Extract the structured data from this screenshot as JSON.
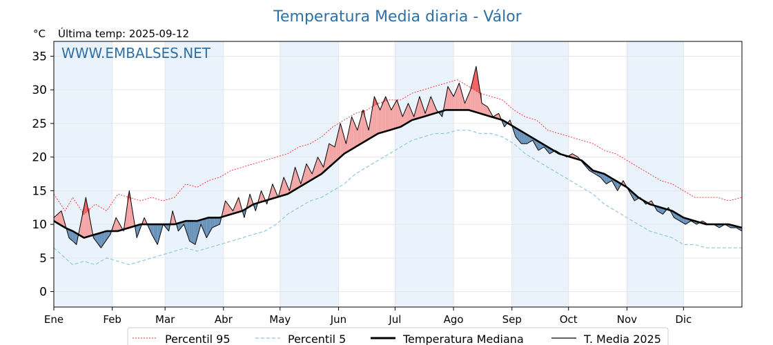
{
  "chart_data": {
    "type": "line",
    "title": "Temperatura Media diaria - Válor",
    "unit_label": "°C",
    "last_temp_label": "Última temp: 2025-09-12",
    "watermark": "WWW.EMBALSES.NET",
    "ylim": [
      -2.3,
      37.2
    ],
    "yticks": [
      0,
      5,
      10,
      15,
      20,
      25,
      30,
      35
    ],
    "xlim": [
      0,
      365
    ],
    "month_labels": [
      "Ene",
      "Feb",
      "Mar",
      "Abr",
      "May",
      "Jun",
      "Jul",
      "Ago",
      "Sep",
      "Oct",
      "Nov",
      "Dic"
    ],
    "month_starts": [
      0,
      31,
      59,
      90,
      120,
      151,
      181,
      212,
      243,
      273,
      304,
      334
    ],
    "grid": true,
    "legend_position": "bottom",
    "colors": {
      "p95": "#e8282a",
      "p5": "#8ec9dc",
      "median": "#000000",
      "year": "#000000",
      "above_fill": "#f4a5a5",
      "above_fill_strong": "#f06161",
      "below_fill": "#6a93bb",
      "month_band": "#eaf3fb",
      "title": "#2f6fa6"
    },
    "series": [
      {
        "name": "Percentil 95",
        "style": "dotted",
        "points": [
          [
            0,
            14.5
          ],
          [
            6,
            12
          ],
          [
            10,
            14
          ],
          [
            16,
            11.5
          ],
          [
            22,
            13
          ],
          [
            28,
            12
          ],
          [
            34,
            14.5
          ],
          [
            40,
            14
          ],
          [
            46,
            13.5
          ],
          [
            52,
            14
          ],
          [
            58,
            13.5
          ],
          [
            64,
            14
          ],
          [
            70,
            16
          ],
          [
            76,
            15.5
          ],
          [
            82,
            16.5
          ],
          [
            88,
            17
          ],
          [
            94,
            18
          ],
          [
            100,
            18.5
          ],
          [
            106,
            19
          ],
          [
            112,
            19.5
          ],
          [
            118,
            20
          ],
          [
            124,
            20.5
          ],
          [
            130,
            21.5
          ],
          [
            136,
            22
          ],
          [
            142,
            23
          ],
          [
            148,
            24.5
          ],
          [
            154,
            25.5
          ],
          [
            160,
            26.5
          ],
          [
            166,
            27
          ],
          [
            172,
            28
          ],
          [
            178,
            28.5
          ],
          [
            184,
            28.5
          ],
          [
            190,
            29.5
          ],
          [
            196,
            30
          ],
          [
            202,
            30.5
          ],
          [
            208,
            31
          ],
          [
            214,
            31.5
          ],
          [
            220,
            30.5
          ],
          [
            226,
            29.5
          ],
          [
            232,
            29
          ],
          [
            238,
            28.5
          ],
          [
            244,
            27
          ],
          [
            250,
            26
          ],
          [
            256,
            25.5
          ],
          [
            262,
            24
          ],
          [
            268,
            23.5
          ],
          [
            274,
            23
          ],
          [
            280,
            22.5
          ],
          [
            286,
            22
          ],
          [
            292,
            21
          ],
          [
            298,
            20.5
          ],
          [
            304,
            19.5
          ],
          [
            310,
            18.5
          ],
          [
            316,
            17.5
          ],
          [
            322,
            16.5
          ],
          [
            328,
            16
          ],
          [
            334,
            15
          ],
          [
            340,
            14
          ],
          [
            346,
            14
          ],
          [
            352,
            14
          ],
          [
            358,
            13.5
          ],
          [
            365,
            14
          ]
        ]
      },
      {
        "name": "Percentil 5",
        "style": "dashed",
        "points": [
          [
            0,
            6.5
          ],
          [
            6,
            5
          ],
          [
            10,
            4
          ],
          [
            16,
            4.5
          ],
          [
            22,
            4
          ],
          [
            28,
            5
          ],
          [
            34,
            4.5
          ],
          [
            40,
            4
          ],
          [
            46,
            4.5
          ],
          [
            52,
            5
          ],
          [
            58,
            5.5
          ],
          [
            64,
            6
          ],
          [
            70,
            6.5
          ],
          [
            76,
            6
          ],
          [
            82,
            6.5
          ],
          [
            88,
            7
          ],
          [
            94,
            7.5
          ],
          [
            100,
            8
          ],
          [
            106,
            8.5
          ],
          [
            112,
            9
          ],
          [
            118,
            10
          ],
          [
            124,
            11.5
          ],
          [
            130,
            12.5
          ],
          [
            136,
            13.5
          ],
          [
            142,
            14
          ],
          [
            148,
            15
          ],
          [
            154,
            16
          ],
          [
            160,
            17.5
          ],
          [
            166,
            18.5
          ],
          [
            172,
            19.5
          ],
          [
            178,
            20.5
          ],
          [
            184,
            21.5
          ],
          [
            190,
            22.5
          ],
          [
            196,
            23
          ],
          [
            202,
            23.5
          ],
          [
            208,
            23.5
          ],
          [
            214,
            24
          ],
          [
            220,
            24
          ],
          [
            226,
            23.5
          ],
          [
            232,
            23.5
          ],
          [
            238,
            23
          ],
          [
            244,
            22
          ],
          [
            250,
            20.5
          ],
          [
            256,
            19.5
          ],
          [
            262,
            18.5
          ],
          [
            268,
            17.5
          ],
          [
            274,
            16.5
          ],
          [
            280,
            15.5
          ],
          [
            286,
            14.5
          ],
          [
            292,
            13
          ],
          [
            298,
            12
          ],
          [
            304,
            11
          ],
          [
            310,
            10
          ],
          [
            316,
            9
          ],
          [
            322,
            8.5
          ],
          [
            328,
            8
          ],
          [
            334,
            7
          ],
          [
            340,
            7
          ],
          [
            346,
            6.5
          ],
          [
            352,
            6.5
          ],
          [
            358,
            6.5
          ],
          [
            365,
            6.5
          ]
        ]
      },
      {
        "name": "Temperatura Mediana",
        "style": "solid-thick",
        "points": [
          [
            0,
            10.5
          ],
          [
            6,
            9.5
          ],
          [
            10,
            9
          ],
          [
            16,
            8
          ],
          [
            22,
            8.5
          ],
          [
            28,
            9
          ],
          [
            34,
            9
          ],
          [
            40,
            9.5
          ],
          [
            46,
            10
          ],
          [
            52,
            10
          ],
          [
            58,
            10
          ],
          [
            64,
            10
          ],
          [
            70,
            10.5
          ],
          [
            76,
            10.5
          ],
          [
            82,
            11
          ],
          [
            88,
            11
          ],
          [
            94,
            11.5
          ],
          [
            100,
            12
          ],
          [
            106,
            13
          ],
          [
            112,
            13.5
          ],
          [
            118,
            14
          ],
          [
            124,
            14.5
          ],
          [
            130,
            15.5
          ],
          [
            136,
            16.5
          ],
          [
            142,
            17.5
          ],
          [
            148,
            19
          ],
          [
            154,
            20.5
          ],
          [
            160,
            21.5
          ],
          [
            166,
            22.5
          ],
          [
            172,
            23.5
          ],
          [
            178,
            24
          ],
          [
            184,
            24.5
          ],
          [
            190,
            25.5
          ],
          [
            196,
            26
          ],
          [
            202,
            26.5
          ],
          [
            208,
            27
          ],
          [
            214,
            27
          ],
          [
            220,
            27
          ],
          [
            226,
            26.5
          ],
          [
            232,
            26
          ],
          [
            238,
            25.5
          ],
          [
            244,
            24.5
          ],
          [
            250,
            23.5
          ],
          [
            256,
            22.5
          ],
          [
            262,
            21.5
          ],
          [
            268,
            20.5
          ],
          [
            274,
            20
          ],
          [
            280,
            19.5
          ],
          [
            286,
            18
          ],
          [
            292,
            17.5
          ],
          [
            298,
            16.5
          ],
          [
            304,
            15.5
          ],
          [
            310,
            14
          ],
          [
            316,
            13
          ],
          [
            322,
            12.5
          ],
          [
            328,
            12
          ],
          [
            334,
            11
          ],
          [
            340,
            10.5
          ],
          [
            346,
            10
          ],
          [
            352,
            10
          ],
          [
            358,
            10
          ],
          [
            365,
            9.5
          ]
        ]
      },
      {
        "name": "T. Media 2025",
        "style": "solid-thin",
        "points": [
          [
            0,
            11
          ],
          [
            4,
            12
          ],
          [
            8,
            8
          ],
          [
            12,
            7
          ],
          [
            17,
            14
          ],
          [
            21,
            8
          ],
          [
            25,
            6.5
          ],
          [
            30,
            8.5
          ],
          [
            33,
            11
          ],
          [
            37,
            9
          ],
          [
            40,
            15
          ],
          [
            44,
            8
          ],
          [
            48,
            11
          ],
          [
            52,
            8.5
          ],
          [
            55,
            7
          ],
          [
            58,
            10
          ],
          [
            61,
            9
          ],
          [
            63,
            12
          ],
          [
            66,
            9
          ],
          [
            69,
            10
          ],
          [
            72,
            7.5
          ],
          [
            75,
            7
          ],
          [
            78,
            10
          ],
          [
            81,
            8
          ],
          [
            84,
            9.5
          ],
          [
            88,
            10
          ],
          [
            91,
            13.5
          ],
          [
            95,
            12
          ],
          [
            98,
            14
          ],
          [
            101,
            11
          ],
          [
            104,
            14.5
          ],
          [
            107,
            12
          ],
          [
            110,
            15
          ],
          [
            113,
            13
          ],
          [
            116,
            16
          ],
          [
            119,
            14
          ],
          [
            122,
            17
          ],
          [
            125,
            15
          ],
          [
            128,
            18.5
          ],
          [
            131,
            16
          ],
          [
            134,
            19
          ],
          [
            137,
            17.5
          ],
          [
            140,
            20
          ],
          [
            143,
            18.5
          ],
          [
            146,
            22
          ],
          [
            149,
            21.5
          ],
          [
            152,
            25
          ],
          [
            155,
            22
          ],
          [
            158,
            26
          ],
          [
            161,
            24
          ],
          [
            164,
            27
          ],
          [
            167,
            24
          ],
          [
            170,
            29
          ],
          [
            173,
            27
          ],
          [
            176,
            29
          ],
          [
            179,
            27
          ],
          [
            182,
            28.5
          ],
          [
            185,
            26
          ],
          [
            188,
            28
          ],
          [
            191,
            26
          ],
          [
            194,
            29
          ],
          [
            197,
            26.5
          ],
          [
            200,
            29
          ],
          [
            203,
            27
          ],
          [
            206,
            26
          ],
          [
            209,
            30.5
          ],
          [
            212,
            29
          ],
          [
            215,
            31
          ],
          [
            218,
            28
          ],
          [
            221,
            30
          ],
          [
            224,
            33.5
          ],
          [
            227,
            28
          ],
          [
            230,
            27.5
          ],
          [
            233,
            26
          ],
          [
            236,
            26.5
          ],
          [
            239,
            24.5
          ],
          [
            242,
            25.5
          ],
          [
            245,
            23
          ],
          [
            248,
            22
          ],
          [
            251,
            22
          ],
          [
            254,
            22.5
          ],
          [
            257,
            21
          ],
          [
            260,
            21.5
          ],
          [
            263,
            20.5
          ],
          [
            266,
            21
          ],
          [
            269,
            20.5
          ],
          [
            272,
            20
          ],
          [
            275,
            20.5
          ],
          [
            278,
            20
          ],
          [
            281,
            19
          ],
          [
            284,
            18
          ],
          [
            287,
            17.5
          ],
          [
            290,
            17
          ],
          [
            293,
            16
          ],
          [
            296,
            16.5
          ],
          [
            299,
            15
          ],
          [
            302,
            16.5
          ],
          [
            305,
            15
          ],
          [
            308,
            13.5
          ],
          [
            311,
            14
          ],
          [
            314,
            13
          ],
          [
            317,
            13.5
          ],
          [
            320,
            12
          ],
          [
            323,
            11.5
          ],
          [
            326,
            12.5
          ],
          [
            329,
            11
          ],
          [
            332,
            10.5
          ],
          [
            335,
            10
          ],
          [
            338,
            10.5
          ],
          [
            341,
            10
          ],
          [
            344,
            10.5
          ],
          [
            347,
            10
          ],
          [
            350,
            10
          ],
          [
            353,
            9.5
          ],
          [
            356,
            10
          ],
          [
            359,
            9.5
          ],
          [
            362,
            9.5
          ],
          [
            365,
            9
          ]
        ]
      }
    ]
  }
}
